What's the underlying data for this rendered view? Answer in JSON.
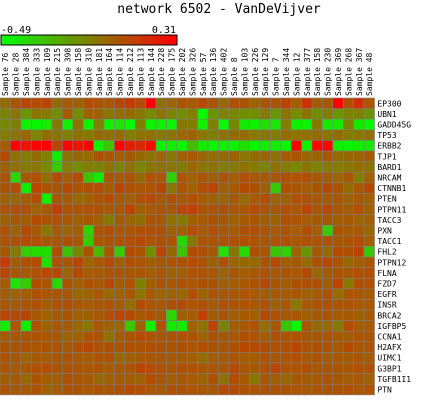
{
  "chart_data": {
    "type": "heatmap",
    "title": "network 6502 - VanDeVijver",
    "color_scale": {
      "min": -0.49,
      "max": 0.31,
      "min_label": "-0.49",
      "max_label": "0.31",
      "low_color": "#00ff00",
      "high_color": "#ff0000"
    },
    "columns": [
      "Sample 76",
      "Sample 28",
      "Sample 384",
      "Sample 333",
      "Sample 109",
      "Sample 215",
      "Sample 398",
      "Sample 158",
      "Sample 310",
      "Sample 181",
      "Sample 164",
      "Sample 114",
      "Sample 212",
      "Sample 113",
      "Sample 144",
      "Sample 228",
      "Sample 175",
      "Sample 202",
      "Sample 326",
      "Sample 57",
      "Sample 136",
      "Sample 402",
      "Sample 8",
      "Sample 103",
      "Sample 226",
      "Sample 129",
      "Sample 7",
      "Sample 344",
      "Sample 12",
      "Sample 377",
      "Sample 158",
      "Sample 230",
      "Sample 369",
      "Sample 268",
      "Sample 367",
      "Sample 48"
    ],
    "rows": [
      "EP300",
      "UBN1",
      "GADD45G",
      "TP53",
      "ERBB2",
      "TJP1",
      "BARD1",
      "NRCAM",
      "CTNNB1",
      "PTEN",
      "PTPN11",
      "TACC3",
      "PXN",
      "TACC1",
      "FHL2",
      "PTPN12",
      "FLNA",
      "FZD7",
      "EGFR",
      "INSR",
      "BRCA2",
      "IGFBP5",
      "CCNA1",
      "H2AFX",
      "UIMC1",
      "G3BP1",
      "TGFB1I1",
      "PTN"
    ],
    "values": [
      [
        -0.03,
        0.05,
        0.09,
        0.07,
        0.09,
        -0.03,
        0.03,
        0.01,
        0.07,
        0.05,
        0.04,
        0.09,
        0.13,
        0.07,
        0.33,
        -0.05,
        -0.01,
        0.05,
        0.03,
        0.08,
        0.05,
        -0.01,
        0.06,
        0.05,
        0.01,
        0.04,
        0.05,
        0.1,
        0.02,
        0.15,
        0.02,
        0.04,
        0.33,
        0.06,
        0.17,
        0.04
      ],
      [
        -0.1,
        -0.06,
        -0.16,
        -0.05,
        -0.07,
        -0.14,
        0.03,
        -0.13,
        0.01,
        0.0,
        -0.06,
        -0.03,
        -0.02,
        -0.07,
        -0.12,
        -0.05,
        -0.1,
        -0.14,
        -0.08,
        -0.47,
        -0.16,
        -0.1,
        -0.12,
        -0.14,
        -0.13,
        -0.08,
        -0.17,
        -0.05,
        -0.13,
        -0.05,
        -0.14,
        -0.08,
        -0.16,
        -0.1,
        -0.09,
        -0.15
      ],
      [
        -0.12,
        -0.09,
        -0.45,
        -0.47,
        -0.43,
        -0.07,
        -0.45,
        -0.05,
        -0.44,
        -0.09,
        -0.45,
        -0.41,
        -0.47,
        -0.09,
        -0.46,
        -0.44,
        -0.46,
        -0.07,
        -0.08,
        -0.44,
        -0.09,
        -0.47,
        -0.12,
        -0.43,
        -0.45,
        -0.39,
        -0.41,
        -0.09,
        -0.44,
        -0.45,
        -0.07,
        -0.42,
        -0.43,
        -0.1,
        -0.42,
        -0.47
      ],
      [
        -0.08,
        -0.05,
        -0.01,
        -0.11,
        -0.03,
        -0.06,
        -0.09,
        -0.04,
        -0.06,
        -0.02,
        -0.03,
        -0.03,
        -0.08,
        -0.05,
        -0.04,
        -0.07,
        -0.05,
        -0.01,
        0.01,
        -0.06,
        -0.09,
        -0.04,
        -0.03,
        -0.03,
        -0.06,
        -0.06,
        -0.08,
        -0.03,
        -0.05,
        -0.04,
        -0.02,
        -0.06,
        -0.03,
        -0.07,
        -0.06,
        -0.05
      ],
      [
        0.02,
        0.31,
        0.24,
        0.31,
        0.33,
        0.09,
        0.29,
        0.24,
        0.33,
        -0.45,
        -0.31,
        0.3,
        0.21,
        0.18,
        0.26,
        -0.45,
        -0.44,
        -0.46,
        -0.27,
        -0.42,
        -0.46,
        -0.44,
        -0.45,
        -0.39,
        -0.46,
        -0.43,
        -0.44,
        -0.46,
        0.32,
        -0.45,
        0.29,
        0.28,
        -0.45,
        -0.46,
        -0.43,
        -0.42
      ],
      [
        0.08,
        -0.04,
        -0.08,
        -0.03,
        -0.09,
        -0.43,
        -0.05,
        -0.02,
        -0.02,
        0.06,
        0.04,
        0.02,
        0.03,
        -0.02,
        -0.04,
        -0.01,
        -0.06,
        0.01,
        0.03,
        -0.01,
        -0.03,
        -0.02,
        0.01,
        -0.06,
        -0.02,
        -0.01,
        -0.04,
        0.02,
        0.05,
        -0.01,
        0.0,
        0.04,
        -0.03,
        -0.02,
        0.01,
        0.02
      ],
      [
        0.0,
        -0.04,
        -0.07,
        -0.06,
        -0.12,
        -0.33,
        -0.08,
        -0.13,
        -0.08,
        -0.1,
        -0.04,
        -0.1,
        -0.04,
        -0.11,
        -0.05,
        -0.05,
        -0.06,
        -0.07,
        -0.01,
        -0.06,
        -0.05,
        -0.08,
        -0.07,
        -0.04,
        -0.07,
        -0.1,
        -0.04,
        -0.08,
        -0.11,
        -0.06,
        -0.1,
        -0.07,
        -0.08,
        -0.06,
        -0.03,
        -0.05
      ],
      [
        0.05,
        -0.36,
        0.03,
        0.06,
        -0.03,
        0.07,
        0.02,
        0.07,
        -0.3,
        -0.42,
        0.05,
        0.03,
        0.05,
        -0.02,
        0.06,
        0.04,
        -0.34,
        0.05,
        0.0,
        0.05,
        0.02,
        0.05,
        0.02,
        0.06,
        0.04,
        0.03,
        0.04,
        0.06,
        0.05,
        0.06,
        0.03,
        0.02,
        0.0,
        0.04,
        -0.08,
        0.01
      ],
      [
        0.05,
        0.07,
        -0.43,
        0.1,
        0.05,
        0.04,
        0.08,
        0.05,
        0.06,
        0.07,
        0.02,
        0.1,
        0.06,
        0.04,
        0.05,
        0.1,
        -0.06,
        0.05,
        0.0,
        0.07,
        0.1,
        0.02,
        0.03,
        0.08,
        0.06,
        0.0,
        -0.33,
        0.05,
        0.04,
        0.02,
        0.05,
        0.08,
        0.05,
        -0.03,
        0.03,
        0.09
      ],
      [
        0.01,
        -0.01,
        0.02,
        0.07,
        -0.43,
        0.04,
        0.03,
        -0.02,
        0.01,
        0.05,
        0.08,
        0.04,
        0.01,
        0.06,
        0.08,
        0.04,
        0.06,
        0.03,
        0.06,
        0.02,
        0.01,
        0.0,
        0.03,
        -0.02,
        0.03,
        0.07,
        0.0,
        0.01,
        0.06,
        0.05,
        0.04,
        0.03,
        0.04,
        0.0,
        0.03,
        0.01
      ],
      [
        0.05,
        0.06,
        0.06,
        0.0,
        0.03,
        0.12,
        0.05,
        0.05,
        0.06,
        0.05,
        0.03,
        0.04,
        0.1,
        0.01,
        0.03,
        0.05,
        0.04,
        0.08,
        0.11,
        0.05,
        0.05,
        0.06,
        0.04,
        0.04,
        0.07,
        0.05,
        0.04,
        0.06,
        0.04,
        0.1,
        0.04,
        0.09,
        0.04,
        0.02,
        0.06,
        0.01
      ],
      [
        0.01,
        0.04,
        0.02,
        0.07,
        0.05,
        0.06,
        0.04,
        0.01,
        0.04,
        0.01,
        -0.07,
        0.02,
        -0.01,
        -0.03,
        0.05,
        0.04,
        -0.04,
        -0.07,
        0.01,
        0.03,
        0.05,
        0.04,
        0.01,
        0.03,
        0.05,
        0.01,
        0.01,
        0.06,
        0.05,
        0.02,
        0.03,
        0.04,
        0.02,
        0.03,
        0.0,
        0.01
      ],
      [
        0.06,
        0.01,
        0.08,
        0.03,
        -0.06,
        0.03,
        0.0,
        0.02,
        -0.35,
        0.05,
        0.07,
        0.04,
        0.05,
        0.06,
        0.06,
        0.06,
        0.01,
        0.01,
        0.07,
        0.03,
        0.06,
        0.04,
        0.03,
        0.06,
        0.06,
        0.05,
        0.03,
        0.05,
        0.02,
        0.07,
        0.02,
        -0.33,
        0.05,
        0.03,
        0.04,
        -0.01
      ],
      [
        0.05,
        0.06,
        0.07,
        0.06,
        0.04,
        0.04,
        0.06,
        0.04,
        -0.33,
        0.05,
        0.05,
        0.06,
        0.06,
        0.08,
        0.05,
        0.06,
        0.05,
        -0.36,
        -0.06,
        0.05,
        0.05,
        0.06,
        0.06,
        0.06,
        0.05,
        0.04,
        0.05,
        0.06,
        0.04,
        0.06,
        0.05,
        0.05,
        0.04,
        0.05,
        0.07,
        0.02
      ],
      [
        0.03,
        -0.07,
        -0.34,
        -0.38,
        -0.39,
        0.06,
        -0.3,
        -0.11,
        0.05,
        -0.27,
        0.04,
        -0.33,
        0.08,
        0.05,
        -0.14,
        0.1,
        -0.02,
        -0.3,
        0.07,
        0.06,
        0.03,
        -0.4,
        -0.06,
        -0.37,
        0.07,
        0.04,
        -0.32,
        -0.35,
        0.0,
        -0.15,
        0.03,
        -0.02,
        0.07,
        0.06,
        0.11,
        -0.32
      ],
      [
        0.13,
        0.02,
        0.06,
        0.08,
        -0.39,
        0.06,
        0.05,
        0.09,
        -0.01,
        0.04,
        0.07,
        0.02,
        0.06,
        0.05,
        0.02,
        0.03,
        0.05,
        0.06,
        0.07,
        0.05,
        0.01,
        0.06,
        -0.01,
        -0.02,
        -0.02,
        0.05,
        0.08,
        0.02,
        0.04,
        -0.03,
        0.06,
        0.09,
        0.05,
        -0.02,
        0.02,
        0.04
      ],
      [
        0.09,
        0.04,
        0.03,
        0.05,
        0.08,
        0.08,
        0.0,
        0.08,
        0.02,
        0.03,
        0.05,
        0.05,
        0.04,
        0.04,
        0.02,
        0.05,
        0.01,
        0.01,
        0.06,
        0.05,
        0.04,
        0.0,
        0.04,
        0.02,
        0.04,
        0.06,
        0.03,
        0.05,
        0.04,
        0.08,
        -0.01,
        0.03,
        0.05,
        0.04,
        0.06,
        0.06
      ],
      [
        0.02,
        -0.41,
        -0.33,
        0.06,
        0.04,
        -0.37,
        0.05,
        0.01,
        0.05,
        0.03,
        0.09,
        0.02,
        0.05,
        -0.09,
        0.02,
        0.05,
        0.04,
        0.05,
        0.03,
        0.06,
        0.05,
        0.02,
        0.02,
        0.04,
        0.05,
        0.08,
        0.05,
        0.02,
        0.06,
        0.06,
        0.06,
        0.02,
        0.1,
        -0.07,
        0.06,
        0.05
      ],
      [
        0.02,
        0.0,
        0.02,
        0.06,
        0.04,
        0.04,
        0.04,
        -0.01,
        0.0,
        0.04,
        -0.01,
        0.01,
        0.04,
        -0.06,
        0.03,
        -0.01,
        0.0,
        -0.01,
        0.07,
        0.0,
        0.05,
        0.04,
        0.04,
        0.05,
        0.03,
        0.02,
        0.03,
        0.03,
        0.04,
        0.01,
        0.03,
        0.06,
        -0.03,
        0.05,
        0.03,
        0.02
      ],
      [
        0.04,
        0.04,
        0.05,
        0.06,
        0.02,
        0.06,
        0.06,
        0.04,
        0.02,
        0.04,
        0.06,
        0.02,
        -0.04,
        0.07,
        0.04,
        0.03,
        0.06,
        0.07,
        0.05,
        0.06,
        0.03,
        0.06,
        0.06,
        0.05,
        0.04,
        0.06,
        0.01,
        0.04,
        -0.07,
        0.03,
        0.06,
        0.06,
        0.05,
        0.05,
        0.03,
        0.03
      ],
      [
        0.09,
        0.08,
        0.09,
        0.03,
        0.0,
        0.03,
        0.05,
        0.01,
        0.01,
        0.03,
        0.07,
        0.1,
        0.08,
        0.04,
        0.06,
        0.03,
        -0.36,
        0.01,
        0.02,
        0.11,
        0.02,
        0.05,
        0.02,
        0.03,
        0.01,
        0.08,
        0.06,
        0.03,
        0.04,
        0.01,
        0.03,
        0.05,
        0.03,
        0.03,
        0.01,
        0.02
      ],
      [
        -0.43,
        0.03,
        -0.42,
        0.06,
        0.0,
        0.04,
        0.03,
        -0.01,
        -0.05,
        0.04,
        0.01,
        -0.01,
        -0.32,
        0.01,
        -0.44,
        0.04,
        -0.42,
        -0.42,
        0.0,
        -0.05,
        0.09,
        -0.09,
        0.02,
        0.03,
        0.05,
        -0.04,
        0.03,
        -0.31,
        -0.46,
        0.04,
        -0.02,
        -0.01,
        -0.07,
        0.07,
        0.02,
        0.02
      ],
      [
        0.03,
        0.04,
        0.04,
        0.05,
        0.04,
        0.04,
        0.0,
        0.01,
        0.05,
        0.05,
        -0.04,
        0.03,
        0.04,
        0.07,
        0.05,
        0.05,
        0.05,
        0.05,
        0.05,
        0.0,
        0.05,
        0.04,
        0.04,
        0.06,
        0.05,
        0.02,
        0.06,
        0.05,
        0.05,
        0.04,
        0.04,
        0.05,
        0.03,
        0.02,
        0.05,
        0.04
      ],
      [
        0.05,
        0.05,
        0.06,
        0.04,
        0.05,
        0.05,
        0.03,
        0.06,
        0.08,
        0.05,
        0.06,
        0.05,
        0.06,
        0.05,
        0.06,
        0.06,
        0.05,
        0.06,
        0.04,
        0.07,
        0.05,
        0.05,
        0.06,
        0.09,
        0.07,
        0.07,
        0.06,
        0.06,
        0.09,
        0.05,
        0.06,
        0.05,
        0.03,
        0.08,
        0.04,
        0.04
      ],
      [
        0.05,
        0.04,
        0.0,
        0.03,
        0.02,
        0.04,
        0.05,
        0.03,
        0.02,
        0.05,
        0.06,
        -0.01,
        0.01,
        0.03,
        0.04,
        0.04,
        0.03,
        0.02,
        0.02,
        -0.03,
        0.02,
        0.04,
        0.05,
        0.02,
        0.02,
        0.06,
        0.04,
        0.05,
        0.06,
        0.03,
        0.05,
        0.03,
        0.04,
        0.03,
        0.04,
        0.02
      ],
      [
        0.05,
        0.03,
        0.05,
        0.06,
        0.06,
        0.05,
        0.05,
        0.05,
        0.04,
        0.05,
        0.03,
        0.04,
        0.05,
        0.09,
        0.07,
        0.06,
        0.05,
        0.06,
        0.05,
        0.04,
        0.05,
        0.05,
        0.08,
        0.04,
        0.04,
        0.06,
        0.1,
        0.05,
        0.05,
        0.06,
        0.04,
        0.05,
        0.05,
        0.04,
        0.06,
        0.05
      ],
      [
        0.02,
        0.04,
        -0.02,
        0.05,
        0.02,
        0.01,
        0.06,
        0.04,
        0.03,
        -0.02,
        0.02,
        0.03,
        0.02,
        0.01,
        0.07,
        0.05,
        0.02,
        0.03,
        0.02,
        0.0,
        0.06,
        -0.04,
        0.07,
        0.03,
        -0.06,
        0.04,
        0.02,
        -0.01,
        0.04,
        0.02,
        0.04,
        0.05,
        0.04,
        0.02,
        0.03,
        0.01
      ],
      [
        0.05,
        0.04,
        0.03,
        0.05,
        0.01,
        0.02,
        0.06,
        0.05,
        0.03,
        0.05,
        0.04,
        0.06,
        0.07,
        0.06,
        0.04,
        0.04,
        0.06,
        0.05,
        0.05,
        0.04,
        0.04,
        0.08,
        0.07,
        0.05,
        0.05,
        0.05,
        0.06,
        0.05,
        0.05,
        0.03,
        0.05,
        0.05,
        0.05,
        0.06,
        0.04,
        0.05
      ]
    ]
  }
}
